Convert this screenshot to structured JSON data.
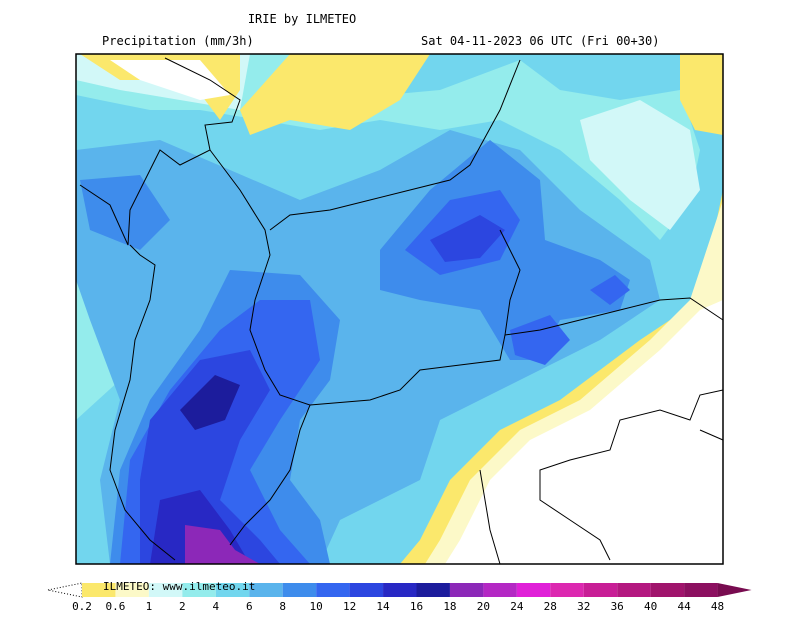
{
  "header": {
    "title": "IRIE by ILMETEO",
    "subtitle": "Precipitation (mm/3h)",
    "valid_time": "Sat 04-11-2023 06 UTC (Fri 00+30)"
  },
  "legend": {
    "watermark": "ILMETEO: www.ilmeteo.it",
    "levels": [
      0.2,
      0.6,
      1,
      2,
      4,
      6,
      8,
      10,
      12,
      14,
      16,
      18,
      20,
      24,
      28,
      32,
      36,
      40,
      44,
      48
    ],
    "colors": [
      "#fbe86c",
      "#fcf9c8",
      "#d2f8f8",
      "#94ecec",
      "#72d6ee",
      "#5ab4ec",
      "#3e8cec",
      "#3466f0",
      "#2c46e0",
      "#2828c4",
      "#1c1c9c",
      "#8c28b8",
      "#b428c4",
      "#e020d8",
      "#dc28b0",
      "#c81e96",
      "#b41880",
      "#a0146c",
      "#8c1060",
      "#780c50"
    ]
  }
}
